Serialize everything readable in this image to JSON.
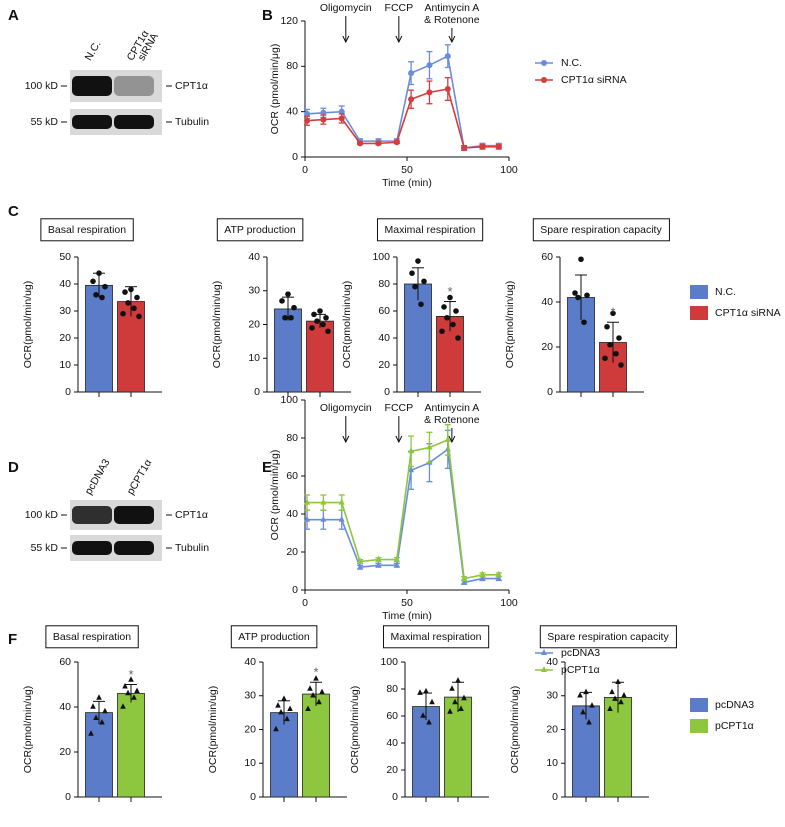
{
  "panel_labels": [
    "A",
    "B",
    "C",
    "D",
    "E",
    "F"
  ],
  "blots": [
    {
      "lanes": [
        [
          "N.C."
        ],
        [
          "CPT1α",
          "siRNA"
        ]
      ],
      "bands": [
        {
          "size": "100 kD",
          "protein": "CPT1α"
        },
        {
          "size": "55 kD",
          "protein": "Tubulin"
        }
      ]
    },
    {
      "lanes": [
        [
          "pcDNA3"
        ],
        [
          "pCPT1α"
        ]
      ],
      "bands": [
        {
          "size": "100 kD",
          "protein": "CPT1α"
        },
        {
          "size": "55 kD",
          "protein": "Tubulin"
        }
      ]
    }
  ],
  "chart_data": [
    {
      "type": "line",
      "x_label": "Time (min)",
      "y_label": "OCR (pmol/min/μg)",
      "marker": "circle",
      "x": [
        1,
        9,
        18,
        27,
        36,
        45,
        52,
        61,
        70,
        78,
        87,
        95
      ],
      "xlim": [
        0,
        100
      ],
      "xticks": [
        0,
        50,
        100
      ],
      "ylim": [
        0,
        120
      ],
      "yticks": [
        0,
        40,
        80,
        120
      ],
      "annotations": [
        {
          "lines": [
            "Oligomycin"
          ],
          "x": 20
        },
        {
          "lines": [
            "FCCP"
          ],
          "x": 46
        },
        {
          "lines": [
            "Antimycin A",
            "& Rotenone"
          ],
          "x": 72
        }
      ],
      "series": [
        {
          "name": "N.C.",
          "color": "#6a8ddb",
          "values": [
            38,
            39,
            40,
            14,
            14,
            14,
            74,
            81,
            89,
            8,
            10,
            10
          ],
          "errors": [
            4,
            4,
            5,
            2,
            2,
            2,
            10,
            12,
            10,
            2,
            2,
            2
          ]
        },
        {
          "name": "CPT1α siRNA",
          "color": "#d63c3c",
          "values": [
            32,
            33,
            34,
            12,
            12,
            13,
            51,
            57,
            60,
            8,
            9,
            9
          ],
          "errors": [
            4,
            4,
            4,
            1,
            1,
            1,
            8,
            10,
            10,
            2,
            2,
            2
          ]
        }
      ],
      "legend": true
    },
    {
      "type": "bar",
      "title": "Basal respiration",
      "y_label": "OCR(pmol/min/ug)",
      "marker": "circle",
      "ylim": [
        0,
        50
      ],
      "yticks": [
        0,
        10,
        20,
        30,
        40,
        50
      ],
      "series": [
        {
          "name": "N.C.",
          "color": "#5b7cc8",
          "values": [
            39.5
          ],
          "errors": [
            4.5
          ],
          "points": [
            44,
            41,
            39,
            36,
            35
          ]
        },
        {
          "name": "CPT1α siRNA",
          "color": "#cf3b3b",
          "values": [
            33.5
          ],
          "errors": [
            5.5
          ],
          "points": [
            38,
            37,
            35,
            33,
            31,
            29,
            28
          ]
        }
      ],
      "annotations": [],
      "legend": false
    },
    {
      "type": "bar",
      "title": "ATP production",
      "y_label": "OCR(pmol/min/ug)",
      "marker": "circle",
      "ylim": [
        0,
        40
      ],
      "yticks": [
        0,
        10,
        20,
        30,
        40
      ],
      "series": [
        {
          "name": "N.C.",
          "color": "#5b7cc8",
          "values": [
            24.6
          ],
          "errors": [
            3.5
          ],
          "points": [
            29,
            27,
            25,
            22,
            22
          ]
        },
        {
          "name": "CPT1α siRNA",
          "color": "#cf3b3b",
          "values": [
            21
          ],
          "errors": [
            2
          ],
          "points": [
            24,
            23,
            22,
            21,
            20,
            19,
            18
          ]
        }
      ],
      "annotations": [],
      "legend": false
    },
    {
      "type": "bar",
      "title": "Maximal respiration",
      "y_label": "OCR(pmol/min/ug)",
      "marker": "circle",
      "ylim": [
        0,
        100
      ],
      "yticks": [
        0,
        20,
        40,
        60,
        80,
        100
      ],
      "series": [
        {
          "name": "N.C.",
          "color": "#5b7cc8",
          "values": [
            80
          ],
          "errors": [
            12
          ],
          "points": [
            97,
            88,
            82,
            78,
            65
          ]
        },
        {
          "name": "CPT1α siRNA",
          "color": "#cf3b3b",
          "values": [
            56
          ],
          "errors": [
            11
          ],
          "points": [
            70,
            63,
            60,
            55,
            50,
            45,
            40
          ]
        }
      ],
      "annotations": [
        {
          "text": "*",
          "series": 1
        }
      ],
      "legend": false
    },
    {
      "type": "bar",
      "title": "Spare respiration capacity",
      "y_label": "OCR(pmol/min/ug)",
      "marker": "circle",
      "ylim": [
        0,
        60
      ],
      "yticks": [
        0,
        20,
        40,
        60
      ],
      "series": [
        {
          "name": "N.C.",
          "color": "#5b7cc8",
          "values": [
            42
          ],
          "errors": [
            10
          ],
          "points": [
            59,
            44,
            43,
            42,
            31
          ]
        },
        {
          "name": "CPT1α siRNA",
          "color": "#cf3b3b",
          "values": [
            22
          ],
          "errors": [
            9
          ],
          "points": [
            35,
            29,
            24,
            21,
            17,
            15,
            12
          ]
        }
      ],
      "annotations": [
        {
          "text": "*",
          "series": 1
        }
      ],
      "legend": true
    },
    {
      "type": "line",
      "x_label": "Time (min)",
      "y_label": "OCR (pmol/min/μg)",
      "marker": "triangle",
      "x": [
        1,
        9,
        18,
        27,
        36,
        45,
        52,
        61,
        70,
        78,
        87,
        95
      ],
      "xlim": [
        0,
        100
      ],
      "xticks": [
        0,
        50,
        100
      ],
      "ylim": [
        0,
        100
      ],
      "yticks": [
        0,
        20,
        40,
        60,
        80,
        100
      ],
      "annotations": [
        {
          "lines": [
            "Oligomycin"
          ],
          "x": 20
        },
        {
          "lines": [
            "FCCP"
          ],
          "x": 46
        },
        {
          "lines": [
            "Antimycin A",
            "& Rotenone"
          ],
          "x": 72
        }
      ],
      "series": [
        {
          "name": "pcDNA3",
          "color": "#6a8ddb",
          "values": [
            37,
            37,
            37,
            12,
            13,
            13,
            63,
            67,
            74,
            4,
            6,
            6
          ],
          "errors": [
            5,
            5,
            5,
            1,
            1,
            1,
            10,
            10,
            10,
            1,
            1,
            1
          ]
        },
        {
          "name": "pCPT1α",
          "color": "#8dc63f",
          "values": [
            46,
            46,
            46,
            15,
            16,
            16,
            73,
            75,
            79,
            6,
            8,
            8
          ],
          "errors": [
            4,
            4,
            4,
            1,
            1,
            1,
            8,
            8,
            8,
            1,
            1,
            1
          ]
        }
      ],
      "legend": true
    },
    {
      "type": "bar",
      "title": "Basal respiration",
      "y_label": "OCR(pmol/min/ug)",
      "marker": "triangle",
      "ylim": [
        0,
        60
      ],
      "yticks": [
        0,
        20,
        40,
        60
      ],
      "series": [
        {
          "name": "pcDNA3",
          "color": "#5b7cc8",
          "values": [
            37.5
          ],
          "errors": [
            5
          ],
          "points": [
            44,
            40,
            38,
            35,
            33,
            28
          ]
        },
        {
          "name": "pCPT1α",
          "color": "#8dc63f",
          "values": [
            46
          ],
          "errors": [
            4
          ],
          "points": [
            52,
            49,
            47,
            46,
            44,
            40
          ]
        }
      ],
      "annotations": [
        {
          "text": "*",
          "series": 1
        }
      ],
      "legend": false
    },
    {
      "type": "bar",
      "title": "ATP production",
      "y_label": "OCR(pmol/min/ug)",
      "marker": "triangle",
      "ylim": [
        0,
        40
      ],
      "yticks": [
        0,
        10,
        20,
        30,
        40
      ],
      "series": [
        {
          "name": "pcDNA3",
          "color": "#5b7cc8",
          "values": [
            25
          ],
          "errors": [
            3.5
          ],
          "points": [
            29,
            27,
            26,
            25,
            23,
            20
          ]
        },
        {
          "name": "pCPT1α",
          "color": "#8dc63f",
          "values": [
            30.5
          ],
          "errors": [
            3.5
          ],
          "points": [
            35,
            32,
            31,
            30,
            28,
            26
          ]
        }
      ],
      "annotations": [
        {
          "text": "*",
          "series": 1
        }
      ],
      "legend": false
    },
    {
      "type": "bar",
      "title": "Maximal respiration",
      "y_label": "OCR(pmol/min/ug)",
      "marker": "triangle",
      "ylim": [
        0,
        100
      ],
      "yticks": [
        0,
        20,
        40,
        60,
        80,
        100
      ],
      "series": [
        {
          "name": "pcDNA3",
          "color": "#5b7cc8",
          "values": [
            67
          ],
          "errors": [
            10
          ],
          "points": [
            78,
            77,
            70,
            60,
            55
          ]
        },
        {
          "name": "pCPT1α",
          "color": "#8dc63f",
          "values": [
            74
          ],
          "errors": [
            11
          ],
          "points": [
            86,
            80,
            73,
            70,
            65,
            63
          ]
        }
      ],
      "annotations": [],
      "legend": false
    },
    {
      "type": "bar",
      "title": "Spare respiration capacity",
      "y_label": "OCR(pmol/min/ug)",
      "marker": "triangle",
      "ylim": [
        0,
        40
      ],
      "yticks": [
        0,
        10,
        20,
        30,
        40
      ],
      "series": [
        {
          "name": "pcDNA3",
          "color": "#5b7cc8",
          "values": [
            27
          ],
          "errors": [
            4
          ],
          "points": [
            31,
            30,
            27,
            25,
            22
          ]
        },
        {
          "name": "pCPT1α",
          "color": "#8dc63f",
          "values": [
            29.5
          ],
          "errors": [
            4.5
          ],
          "points": [
            34,
            31,
            30,
            29,
            28,
            26
          ]
        }
      ],
      "annotations": [],
      "legend": true
    }
  ]
}
